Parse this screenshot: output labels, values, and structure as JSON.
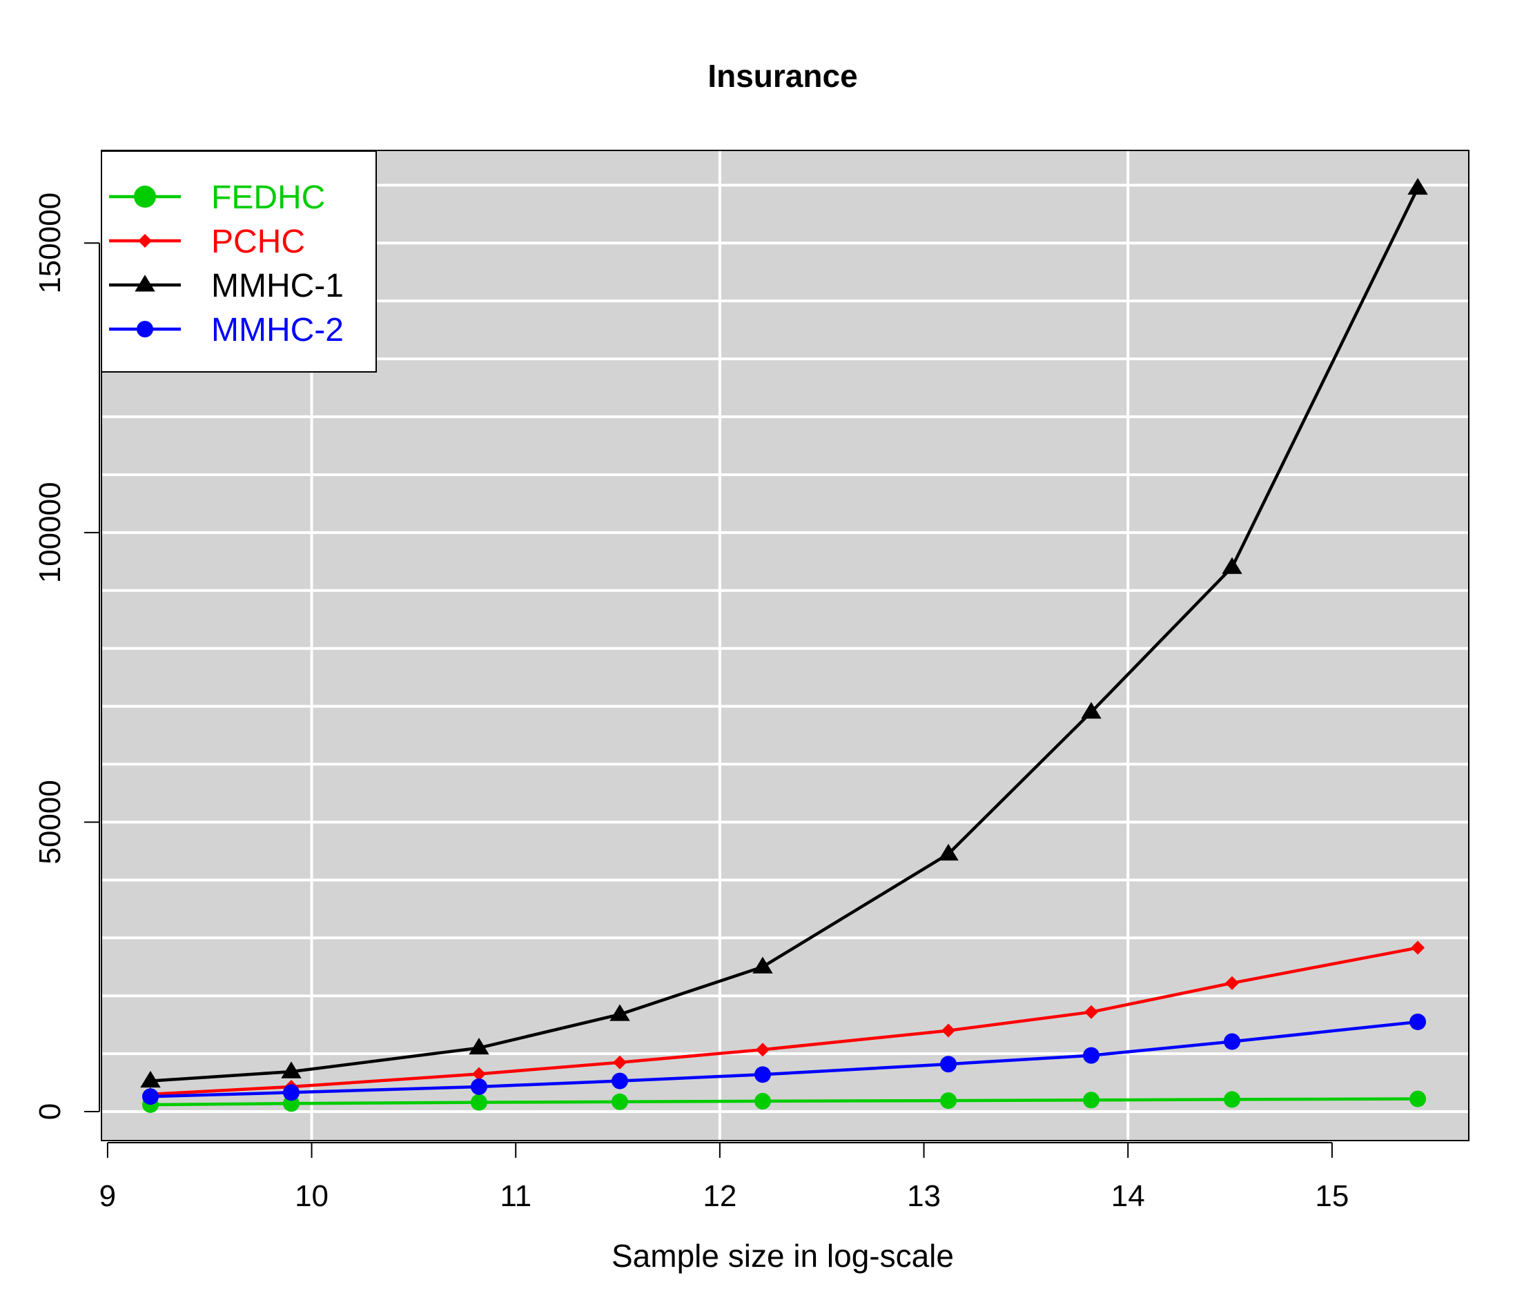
{
  "chart_data": {
    "type": "line",
    "title": "Insurance",
    "xlabel": "Sample size in log-scale",
    "ylabel": "",
    "xlim": [
      8.97,
      15.67
    ],
    "ylim": [
      -5000,
      166000
    ],
    "x_ticks": [
      9,
      10,
      11,
      12,
      13,
      14,
      15
    ],
    "x_tick_labels": [
      "9",
      "10",
      "11",
      "12",
      "13",
      "14",
      "15"
    ],
    "y_ticks": [
      0,
      50000,
      100000,
      150000
    ],
    "y_tick_labels": [
      "0",
      "50000",
      "100000",
      "150000"
    ],
    "x_gridlines": [
      10,
      12,
      14
    ],
    "y_gridlines": [
      0,
      10000,
      20000,
      30000,
      40000,
      50000,
      60000,
      70000,
      80000,
      90000,
      100000,
      110000,
      120000,
      130000,
      140000,
      150000,
      160000
    ],
    "background": "#d3d3d3",
    "grid": true,
    "legend_position": "top-left",
    "x": [
      9.21,
      9.9,
      10.82,
      11.51,
      12.21,
      13.12,
      13.82,
      14.51,
      15.42
    ],
    "series": [
      {
        "name": "FEDHC",
        "color": "#00cc00",
        "marker": "circle",
        "values": [
          1200,
          1400,
          1600,
          1700,
          1800,
          1900,
          2000,
          2100,
          2200
        ]
      },
      {
        "name": "PCHC",
        "color": "#ff0000",
        "marker": "diamond",
        "values": [
          3000,
          4300,
          6500,
          8500,
          10700,
          14000,
          17200,
          22200,
          28300
        ]
      },
      {
        "name": "MMHC-1",
        "color": "#000000",
        "marker": "triangle",
        "values": [
          5300,
          6900,
          11000,
          16800,
          25000,
          44500,
          69000,
          94000,
          159500
        ]
      },
      {
        "name": "MMHC-2",
        "color": "#0000ff",
        "marker": "circle",
        "values": [
          2600,
          3300,
          4300,
          5300,
          6400,
          8200,
          9700,
          12100,
          15500
        ]
      }
    ]
  }
}
